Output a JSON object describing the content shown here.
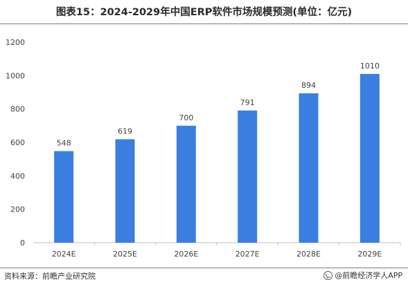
{
  "title": "图表15：2024-2029年中国ERP软件市场规模预测(单位：亿元)",
  "footer": {
    "source": "资料来源：前瞻产业研究院",
    "brand": "@前瞻经济学人APP"
  },
  "colors": {
    "bar": "#3a7fe0",
    "axis": "#bfbfbf",
    "text": "#404040"
  },
  "chart_data": {
    "type": "bar",
    "title": "图表15：2024-2029年中国ERP软件市场规模预测(单位：亿元)",
    "categories": [
      "2024E",
      "2025E",
      "2026E",
      "2027E",
      "2028E",
      "2029E"
    ],
    "values": [
      548,
      619,
      700,
      791,
      894,
      1010
    ],
    "xlabel": "",
    "ylabel": "",
    "ylim": [
      0,
      1200
    ],
    "yticks": [
      0,
      200,
      400,
      600,
      800,
      1000,
      1200
    ],
    "grid": false,
    "legend": "none"
  }
}
